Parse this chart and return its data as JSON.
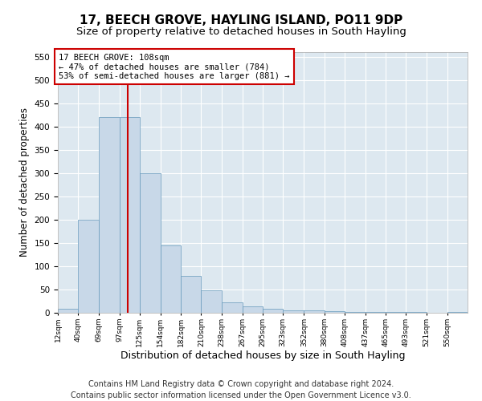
{
  "title": "17, BEECH GROVE, HAYLING ISLAND, PO11 9DP",
  "subtitle": "Size of property relative to detached houses in South Hayling",
  "xlabel": "Distribution of detached houses by size in South Hayling",
  "ylabel": "Number of detached properties",
  "bar_color": "#c8d8e8",
  "bar_edge_color": "#6699bb",
  "background_color": "#dde8f0",
  "vline_x": 108,
  "vline_color": "#cc0000",
  "annotation_text": "17 BEECH GROVE: 108sqm\n← 47% of detached houses are smaller (784)\n53% of semi-detached houses are larger (881) →",
  "annotation_box_color": "#ffffff",
  "annotation_box_edgecolor": "#cc0000",
  "bin_edges": [
    12,
    40,
    69,
    97,
    125,
    154,
    182,
    210,
    238,
    267,
    295,
    323,
    352,
    380,
    408,
    437,
    465,
    493,
    521,
    550,
    578
  ],
  "bar_heights": [
    8,
    200,
    420,
    420,
    300,
    145,
    80,
    48,
    22,
    13,
    8,
    6,
    5,
    3,
    2,
    1,
    1,
    1,
    0,
    2
  ],
  "ylim": [
    0,
    560
  ],
  "yticks": [
    0,
    50,
    100,
    150,
    200,
    250,
    300,
    350,
    400,
    450,
    500,
    550
  ],
  "footer_text": "Contains HM Land Registry data © Crown copyright and database right 2024.\nContains public sector information licensed under the Open Government Licence v3.0.",
  "title_fontsize": 11,
  "subtitle_fontsize": 9.5,
  "xlabel_fontsize": 9,
  "ylabel_fontsize": 8.5,
  "footer_fontsize": 7
}
